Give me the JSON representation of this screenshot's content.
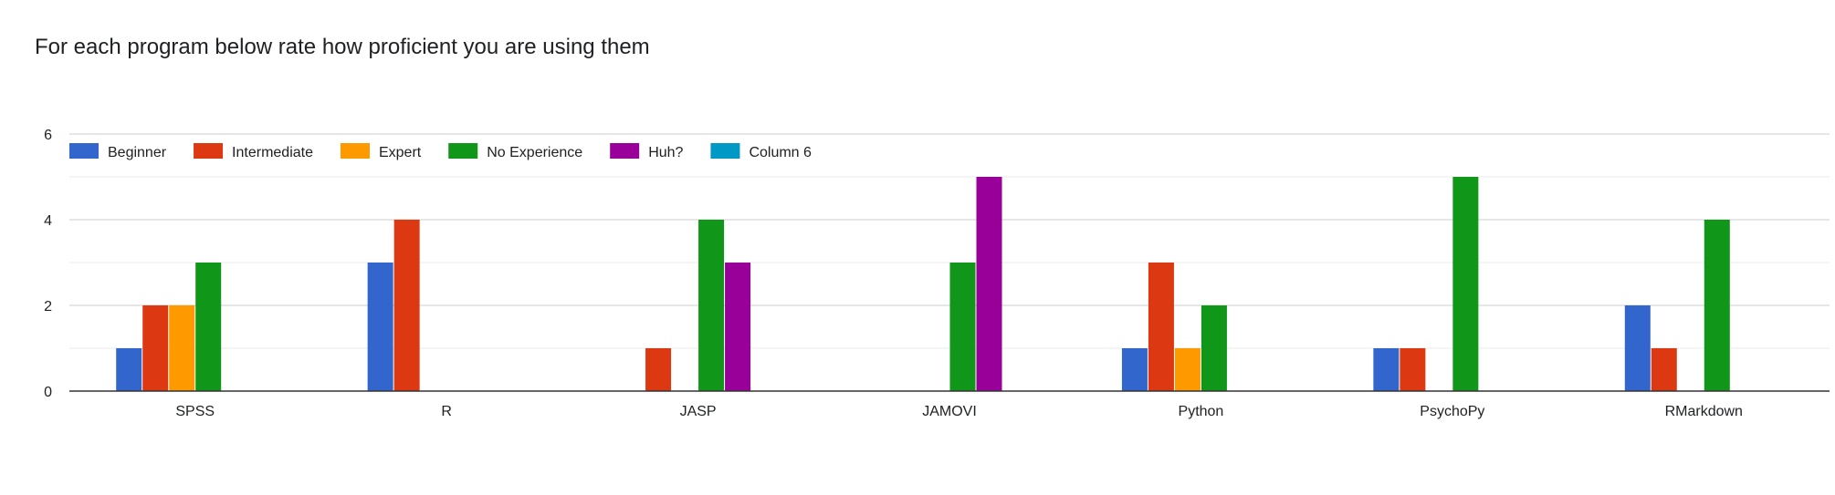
{
  "chart_data": {
    "type": "bar",
    "title": "For each program below rate how proficient you are using them",
    "xlabel": "",
    "ylabel": "",
    "ylim": [
      0,
      6
    ],
    "yticks": [
      0,
      2,
      4,
      6
    ],
    "grid": true,
    "legend_position": "top-left",
    "categories": [
      "SPSS",
      "R",
      "JASP",
      "JAMOVI",
      "Python",
      "PsychoPy",
      "RMarkdown"
    ],
    "series": [
      {
        "name": "Beginner",
        "color": "#3366cc",
        "values": [
          1,
          3,
          0,
          0,
          1,
          1,
          2
        ]
      },
      {
        "name": "Intermediate",
        "color": "#dc3912",
        "values": [
          2,
          4,
          1,
          0,
          3,
          1,
          1
        ]
      },
      {
        "name": "Expert",
        "color": "#ff9900",
        "values": [
          2,
          0,
          0,
          0,
          1,
          0,
          0
        ]
      },
      {
        "name": "No Experience",
        "color": "#109618",
        "values": [
          3,
          0,
          4,
          3,
          2,
          5,
          4
        ]
      },
      {
        "name": "Huh?",
        "color": "#990099",
        "values": [
          0,
          0,
          3,
          5,
          0,
          0,
          0
        ]
      },
      {
        "name": "Column 6",
        "color": "#0099c6",
        "values": [
          0,
          0,
          0,
          0,
          0,
          0,
          0
        ]
      }
    ]
  }
}
